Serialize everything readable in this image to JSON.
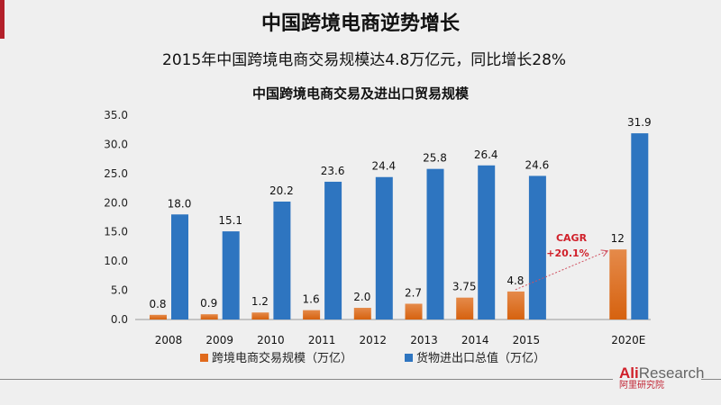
{
  "slide": {
    "title": "中国跨境电商逆势增长",
    "subtitle": "2015年中国跨境电商交易规模达4.8万亿元，同比增长28%",
    "accent_color": "#b3202a"
  },
  "logo": {
    "brand": "AliResearch",
    "brand_cn": "阿里研究院"
  },
  "chart_data": {
    "type": "bar",
    "title": "中国跨境电商交易及进出口贸易规模",
    "categories": [
      "2008",
      "2009",
      "2010",
      "2011",
      "2012",
      "2013",
      "2014",
      "2015",
      "2020E"
    ],
    "series": [
      {
        "name": "跨境电商交易规模（万亿）",
        "color": "#e06a1c",
        "values": [
          0.8,
          0.9,
          1.2,
          1.6,
          2.0,
          2.7,
          3.75,
          4.8,
          12
        ],
        "labels": [
          "0.8",
          "0.9",
          "1.2",
          "1.6",
          "2.0",
          "2.7",
          "3.75",
          "4.8",
          "12"
        ]
      },
      {
        "name": "货物进出口总值（万亿）",
        "color": "#2e75c0",
        "values": [
          18.0,
          15.1,
          20.2,
          23.6,
          24.4,
          25.8,
          26.4,
          24.6,
          31.9
        ],
        "labels": [
          "18.0",
          "15.1",
          "20.2",
          "23.6",
          "24.4",
          "25.8",
          "26.4",
          "24.6",
          "31.9"
        ]
      }
    ],
    "ylim": [
      0,
      35
    ],
    "yticks": [
      "0.0",
      "5.0",
      "10.0",
      "15.0",
      "20.0",
      "25.0",
      "30.0",
      "35.0"
    ],
    "grid": false,
    "legend": "bottom",
    "annotation": {
      "line1": "CAGR",
      "line2": "+20.1%",
      "color": "#d0202a"
    }
  }
}
